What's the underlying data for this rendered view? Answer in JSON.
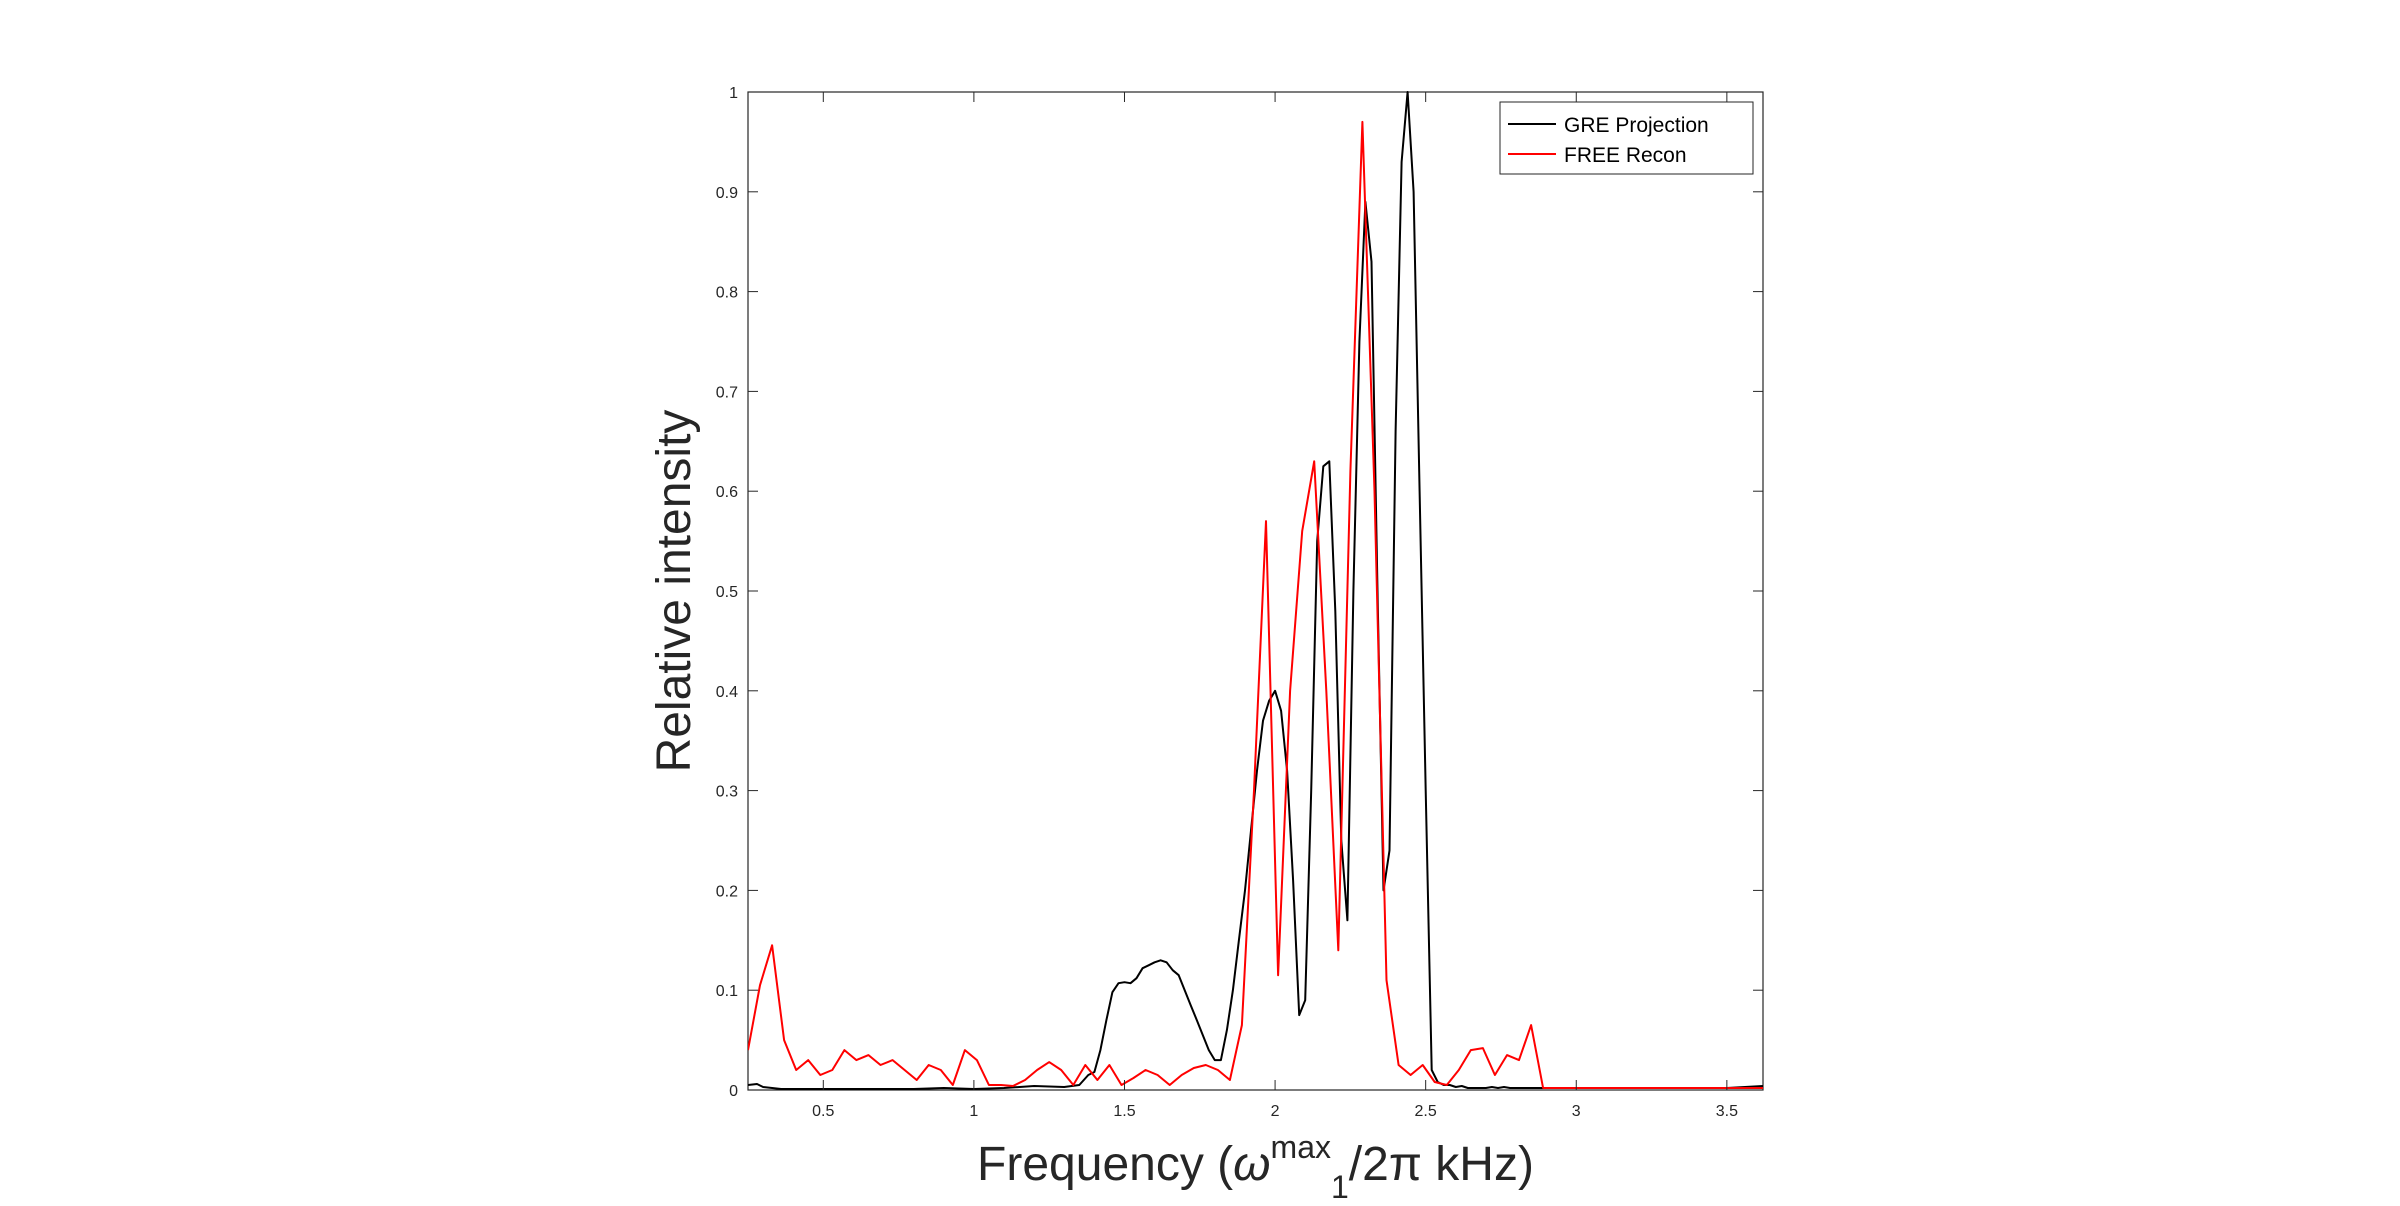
{
  "chart_data": {
    "type": "line",
    "title": "",
    "xlabel": {
      "prefix": "Frequency (",
      "symbol": "ω",
      "superscript": "max",
      "subscript": "1",
      "suffix": "/2π kHz)"
    },
    "ylabel": "Relative intensity",
    "xlim": [
      0.25,
      3.62
    ],
    "ylim": [
      0,
      1
    ],
    "xticks": [
      0.5,
      1,
      1.5,
      2,
      2.5,
      3,
      3.5
    ],
    "xtick_labels": [
      "0.5",
      "1",
      "1.5",
      "2",
      "2.5",
      "3",
      "3.5"
    ],
    "yticks": [
      0,
      0.1,
      0.2,
      0.3,
      0.4,
      0.5,
      0.6,
      0.7,
      0.8,
      0.9,
      1
    ],
    "ytick_labels": [
      "0",
      "0.1",
      "0.2",
      "0.3",
      "0.4",
      "0.5",
      "0.6",
      "0.7",
      "0.8",
      "0.9",
      "1"
    ],
    "grid": false,
    "legend_position": "top-right",
    "series": [
      {
        "name": "GRE Projection",
        "color": "#000000",
        "x": [
          0.25,
          0.28,
          0.3,
          0.33,
          0.36,
          0.4,
          0.5,
          0.6,
          0.7,
          0.8,
          0.9,
          1.0,
          1.1,
          1.2,
          1.3,
          1.35,
          1.38,
          1.4,
          1.42,
          1.44,
          1.46,
          1.48,
          1.5,
          1.52,
          1.54,
          1.56,
          1.58,
          1.6,
          1.62,
          1.64,
          1.66,
          1.68,
          1.7,
          1.72,
          1.74,
          1.76,
          1.78,
          1.8,
          1.82,
          1.84,
          1.86,
          1.88,
          1.9,
          1.92,
          1.94,
          1.96,
          1.98,
          2.0,
          2.02,
          2.04,
          2.06,
          2.08,
          2.1,
          2.12,
          2.14,
          2.16,
          2.18,
          2.2,
          2.22,
          2.24,
          2.26,
          2.28,
          2.3,
          2.32,
          2.34,
          2.36,
          2.38,
          2.4,
          2.42,
          2.44,
          2.46,
          2.48,
          2.5,
          2.52,
          2.54,
          2.56,
          2.58,
          2.6,
          2.62,
          2.64,
          2.66,
          2.68,
          2.7,
          2.72,
          2.74,
          2.76,
          2.78,
          2.8,
          2.82,
          2.84,
          2.86,
          2.88,
          2.9,
          2.95,
          3.0,
          3.1,
          3.2,
          3.3,
          3.4,
          3.5,
          3.62
        ],
        "values": [
          0.005,
          0.006,
          0.003,
          0.002,
          0.001,
          0.001,
          0.001,
          0.001,
          0.001,
          0.001,
          0.002,
          0.001,
          0.002,
          0.004,
          0.003,
          0.005,
          0.015,
          0.018,
          0.04,
          0.07,
          0.098,
          0.107,
          0.108,
          0.107,
          0.112,
          0.122,
          0.125,
          0.128,
          0.13,
          0.128,
          0.12,
          0.115,
          0.1,
          0.085,
          0.07,
          0.055,
          0.04,
          0.03,
          0.03,
          0.06,
          0.1,
          0.15,
          0.2,
          0.26,
          0.32,
          0.37,
          0.39,
          0.4,
          0.38,
          0.32,
          0.21,
          0.075,
          0.09,
          0.3,
          0.55,
          0.625,
          0.63,
          0.48,
          0.25,
          0.17,
          0.5,
          0.75,
          0.89,
          0.83,
          0.5,
          0.2,
          0.24,
          0.66,
          0.93,
          1.0,
          0.9,
          0.6,
          0.3,
          0.02,
          0.008,
          0.005,
          0.005,
          0.003,
          0.004,
          0.002,
          0.002,
          0.002,
          0.002,
          0.003,
          0.002,
          0.003,
          0.002,
          0.002,
          0.002,
          0.002,
          0.002,
          0.002,
          0.002,
          0.002,
          0.002,
          0.002,
          0.002,
          0.002,
          0.002,
          0.002,
          0.004
        ]
      },
      {
        "name": "FREE Recon",
        "color": "#ff0000",
        "x": [
          0.25,
          0.29,
          0.33,
          0.37,
          0.41,
          0.45,
          0.49,
          0.53,
          0.57,
          0.61,
          0.65,
          0.69,
          0.73,
          0.77,
          0.81,
          0.85,
          0.89,
          0.93,
          0.97,
          1.01,
          1.05,
          1.09,
          1.13,
          1.17,
          1.21,
          1.25,
          1.29,
          1.33,
          1.37,
          1.41,
          1.45,
          1.49,
          1.53,
          1.57,
          1.61,
          1.65,
          1.69,
          1.73,
          1.77,
          1.81,
          1.85,
          1.89,
          1.93,
          1.97,
          2.01,
          2.05,
          2.09,
          2.13,
          2.17,
          2.21,
          2.25,
          2.29,
          2.33,
          2.37,
          2.41,
          2.45,
          2.49,
          2.53,
          2.57,
          2.61,
          2.65,
          2.69,
          2.73,
          2.77,
          2.81,
          2.85,
          2.89,
          2.93,
          2.97,
          3.01,
          3.05,
          3.09,
          3.13,
          3.17,
          3.21,
          3.25,
          3.29,
          3.33,
          3.37,
          3.41,
          3.45,
          3.49,
          3.53,
          3.57,
          3.62
        ],
        "values": [
          0.04,
          0.105,
          0.145,
          0.05,
          0.02,
          0.03,
          0.015,
          0.02,
          0.04,
          0.03,
          0.035,
          0.025,
          0.03,
          0.02,
          0.01,
          0.025,
          0.02,
          0.005,
          0.04,
          0.03,
          0.005,
          0.005,
          0.004,
          0.01,
          0.02,
          0.028,
          0.02,
          0.005,
          0.025,
          0.01,
          0.025,
          0.005,
          0.012,
          0.02,
          0.015,
          0.005,
          0.015,
          0.022,
          0.025,
          0.02,
          0.01,
          0.065,
          0.3,
          0.57,
          0.115,
          0.4,
          0.56,
          0.63,
          0.4,
          0.14,
          0.62,
          0.97,
          0.6,
          0.11,
          0.025,
          0.015,
          0.025,
          0.008,
          0.005,
          0.02,
          0.04,
          0.042,
          0.015,
          0.035,
          0.03,
          0.065,
          0.002,
          0.002,
          0.002,
          0.002,
          0.002,
          0.002,
          0.002,
          0.002,
          0.002,
          0.002,
          0.002,
          0.002,
          0.002,
          0.002,
          0.002,
          0.002,
          0.002,
          0.002,
          0.002
        ]
      }
    ]
  }
}
